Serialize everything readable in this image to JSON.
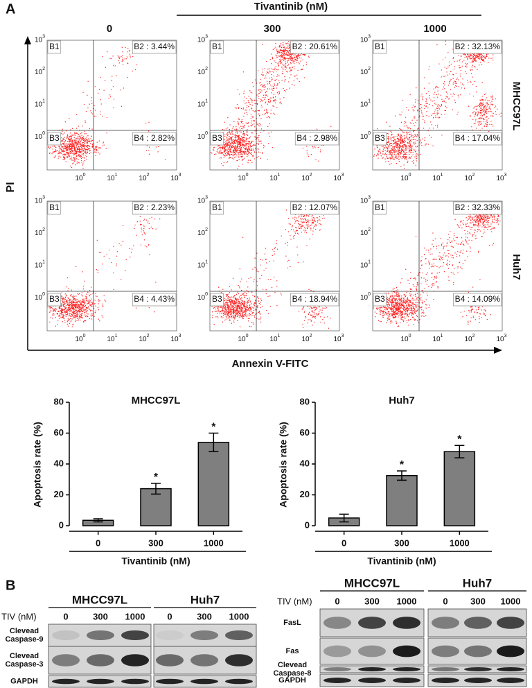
{
  "panel_a": {
    "label": "A",
    "treatment_title": "Tivantinib (nM)",
    "doses": [
      "0",
      "300",
      "1000"
    ],
    "cell_lines": [
      "MHCC97L",
      "Huh7"
    ],
    "y_axis_label": "PI",
    "x_axis_label": "Annexin V-FITC",
    "tick_base": "10",
    "tick_exponents": [
      "0",
      "1",
      "2",
      "3"
    ],
    "quadrant_names": [
      "B1",
      "B2",
      "B3",
      "B4"
    ],
    "separator": " : ",
    "plots": [
      [
        {
          "b2": "3.44%",
          "b4": "2.82%"
        },
        {
          "b2": "20.61%",
          "b4": "2.98%"
        },
        {
          "b2": "32.13%",
          "b4": "17.04%"
        }
      ],
      [
        {
          "b2": "2.23%",
          "b4": "4.43%"
        },
        {
          "b2": "12.07%",
          "b4": "18.94%"
        },
        {
          "b2": "32.33%",
          "b4": "14.09%"
        }
      ]
    ]
  },
  "chart_data": [
    {
      "type": "bar",
      "title": "MHCC97L",
      "categories": [
        "0",
        "300",
        "1000"
      ],
      "values": [
        3.5,
        24,
        54
      ],
      "errors": [
        1,
        3.5,
        6
      ],
      "color": "#7f7f7f",
      "ylim": [
        0,
        80
      ],
      "yticks": [
        0,
        20,
        40,
        60,
        80
      ],
      "ylabel": "Apoptosis rate (%)",
      "xlabel": "Tivantinib (nM)",
      "significance_marks": [
        {
          "category": "300",
          "text": "*"
        },
        {
          "category": "1000",
          "text": "*"
        }
      ]
    },
    {
      "type": "bar",
      "title": "Huh7",
      "categories": [
        "0",
        "300",
        "1000"
      ],
      "values": [
        5,
        32.5,
        48
      ],
      "errors": [
        2.5,
        3,
        4
      ],
      "color": "#7f7f7f",
      "ylim": [
        0,
        80
      ],
      "yticks": [
        0,
        20,
        40,
        60,
        80
      ],
      "ylabel": "Apoptosis rate (%)",
      "xlabel": "Tivantinib (nM)",
      "significance_marks": [
        {
          "category": "300",
          "text": "*"
        },
        {
          "category": "1000",
          "text": "*"
        }
      ]
    }
  ],
  "panel_b": {
    "label": "B",
    "left": {
      "groups": [
        "MHCC97L",
        "Huh7"
      ],
      "treatment_label": "TIV (nM)",
      "lanes": [
        "0",
        "300",
        "1000"
      ],
      "rows": [
        [
          "Clevead",
          "Caspase-9"
        ],
        [
          "Clevead",
          "Caspase-3"
        ],
        [
          "GAPDH"
        ]
      ]
    },
    "right": {
      "groups": [
        "MHCC97L",
        "Huh7"
      ],
      "treatment_label": "TIV (nM)",
      "lanes": [
        "0",
        "300",
        "1000"
      ],
      "rows": [
        [
          "FasL"
        ],
        [
          "Fas"
        ],
        [
          "Clevead",
          "Caspase-8"
        ],
        [
          "GAPDH"
        ]
      ]
    }
  }
}
